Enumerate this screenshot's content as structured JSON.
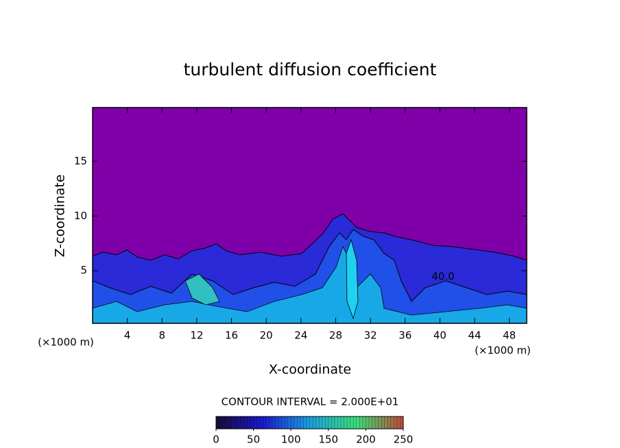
{
  "chart_data": {
    "type": "contour",
    "title": "turbulent diffusion coefficient",
    "x_label": "X-coordinate",
    "y_label": "Z-coordinate",
    "x_unit_left": "(×1000 m)",
    "x_unit_right": "(×1000 m)",
    "xlim": [
      0,
      50
    ],
    "xticks": [
      4,
      8,
      12,
      16,
      20,
      24,
      28,
      32,
      36,
      40,
      44,
      48
    ],
    "ylim": [
      0.2,
      19.9
    ],
    "yticks": [
      5,
      10,
      15
    ],
    "contour_label": "40.0",
    "contour_interval": "CONTOUR INTERVAL = 2.000E+01",
    "colorbar": {
      "lim": [
        0,
        250
      ],
      "ticks": [
        0,
        50,
        100,
        150,
        200,
        250
      ],
      "colors": [
        "#1a0a3a",
        "#1a1ad0",
        "#1aa0e0",
        "#3ae07a",
        "#c04a3a"
      ]
    },
    "background_color": "#7f00a8"
  }
}
